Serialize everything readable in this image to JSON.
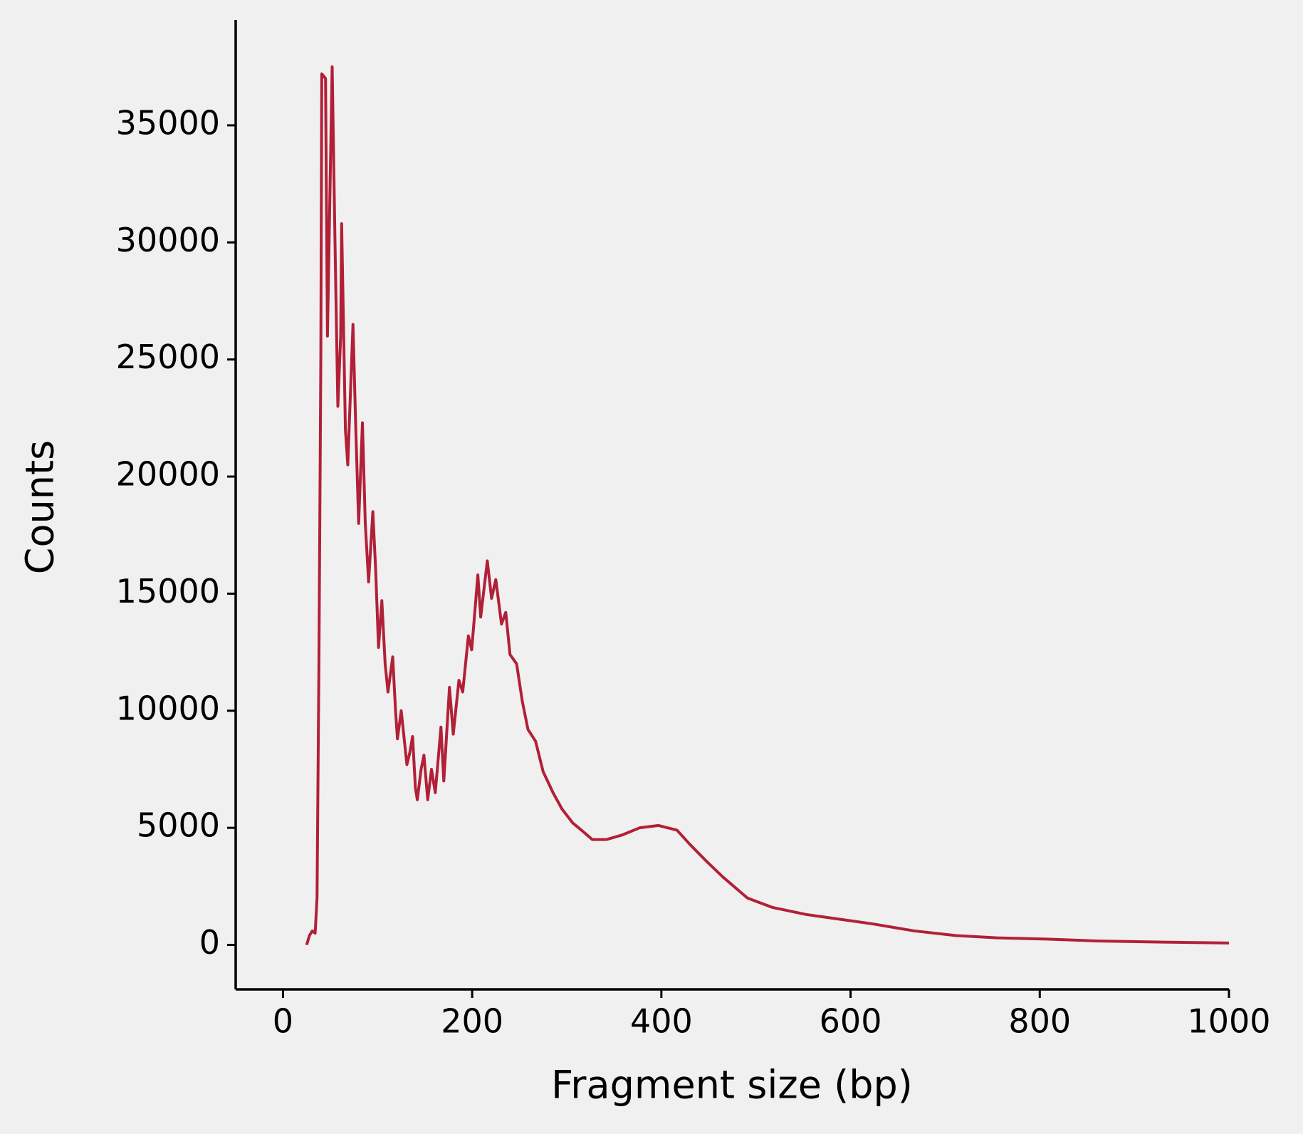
{
  "chart_data": {
    "type": "line",
    "xlabel": "Fragment size (bp)",
    "ylabel": "Counts",
    "x": [
      25,
      28,
      31,
      34,
      36,
      38,
      40,
      41,
      45,
      47,
      52,
      55,
      58,
      61,
      62,
      66,
      68.5,
      74,
      77,
      80,
      84,
      87,
      90.5,
      95,
      98,
      101,
      104.5,
      108,
      111,
      116,
      119,
      121,
      125,
      131,
      134,
      137,
      140,
      142,
      146,
      149,
      153,
      157,
      161,
      167,
      170,
      176,
      180,
      186,
      190,
      196,
      199.5,
      206,
      209,
      216,
      220.5,
      225,
      231,
      235.5,
      240,
      247,
      253,
      259,
      267,
      275,
      285.5,
      295,
      306.5,
      315.5,
      327,
      342,
      359,
      377,
      397,
      416.5,
      430,
      447,
      465,
      491,
      517.5,
      553,
      588,
      623,
      667,
      711,
      755,
      807.5,
      860,
      930,
      1000
    ],
    "series": [
      {
        "color": "#b22038",
        "values": [
          0,
          400,
          600,
          500,
          2000,
          12000,
          25000,
          37200,
          37000,
          26000,
          37500,
          30000,
          23000,
          26000,
          30800,
          22000,
          20500,
          26500,
          22000,
          18000,
          22300,
          18000,
          15500,
          18500,
          16000,
          12700,
          14700,
          12000,
          10800,
          12300,
          10000,
          8800,
          10000,
          7700,
          8200,
          8900,
          6700,
          6200,
          7500,
          8100,
          6200,
          7500,
          6500,
          9300,
          7000,
          11000,
          9000,
          11300,
          10800,
          13200,
          12600,
          15800,
          14000,
          16400,
          14800,
          15600,
          13700,
          14200,
          12400,
          12000,
          10400,
          9200,
          8700,
          7400,
          6500,
          5800,
          5200,
          4900,
          4500,
          4500,
          4700,
          5000,
          5100,
          4900,
          4300,
          3600,
          2900,
          2000,
          1600,
          1300,
          1100,
          900,
          600,
          400,
          300,
          250,
          170,
          120,
          80
        ]
      }
    ],
    "xlim": [
      -50,
      1000
    ],
    "ylim": [
      -1900,
      39500
    ],
    "xticks": [
      0,
      200,
      400,
      600,
      800,
      1000
    ],
    "yticks": [
      0,
      5000,
      10000,
      15000,
      20000,
      25000,
      30000,
      35000
    ]
  }
}
